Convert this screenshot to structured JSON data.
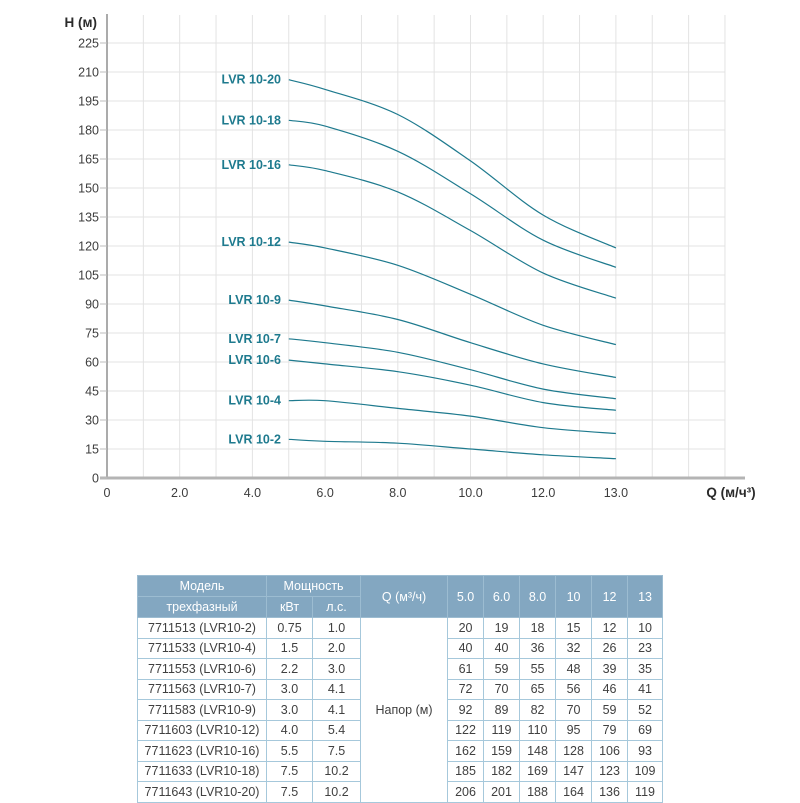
{
  "colors": {
    "curve": "#1e7a8e",
    "curve_label": "#1e7a8e",
    "grid": "#e3e3e3",
    "axis_y": "#8f8f8f",
    "axis_x": "#b4b4b4",
    "tick_text": "#3d3d3d",
    "axis_title": "#2b2b2b",
    "table_header_bg": "#83a7c1",
    "table_header_text": "#ffffff",
    "table_border": "#a6c8db",
    "table_text": "#404040"
  },
  "chart_data": {
    "type": "line",
    "title": "",
    "y_axis_title": "Н (м)",
    "x_axis_title": "Q (м/ч³)",
    "x_tick_labels": [
      "0",
      "2.0",
      "4.0",
      "6.0",
      "8.0",
      "10.0",
      "12.0",
      "13.0"
    ],
    "y_ticks": [
      0,
      15,
      30,
      45,
      60,
      75,
      90,
      105,
      120,
      135,
      150,
      165,
      180,
      195,
      210,
      225
    ],
    "ylim": [
      0,
      240
    ],
    "grid": "on",
    "legend_position": "inline-left-of-curves",
    "x": [
      5.0,
      6.0,
      8.0,
      10.0,
      12.0,
      13.0
    ],
    "series": [
      {
        "name": "LVR 10-2",
        "values": [
          20,
          19,
          18,
          15,
          12,
          10
        ]
      },
      {
        "name": "LVR 10-4",
        "values": [
          40,
          40,
          36,
          32,
          26,
          23
        ]
      },
      {
        "name": "LVR 10-6",
        "values": [
          61,
          59,
          55,
          48,
          39,
          35
        ]
      },
      {
        "name": "LVR 10-7",
        "values": [
          72,
          70,
          65,
          56,
          46,
          41
        ]
      },
      {
        "name": "LVR 10-9",
        "values": [
          92,
          89,
          82,
          70,
          59,
          52
        ]
      },
      {
        "name": "LVR 10-12",
        "values": [
          122,
          119,
          110,
          95,
          79,
          69
        ]
      },
      {
        "name": "LVR 10-16",
        "values": [
          162,
          159,
          148,
          128,
          106,
          93
        ]
      },
      {
        "name": "LVR 10-18",
        "values": [
          185,
          182,
          169,
          147,
          123,
          109
        ]
      },
      {
        "name": "LVR 10-20",
        "values": [
          206,
          201,
          188,
          164,
          136,
          119
        ]
      }
    ]
  },
  "table": {
    "header": {
      "model": "Модель",
      "model_sub": "трехфазный",
      "power": "Мощность",
      "kw": "кВт",
      "hp": "л.с.",
      "q": "Q (м³/ч)",
      "flow": [
        "5.0",
        "6.0",
        "8.0",
        "10",
        "12",
        "13"
      ],
      "napor": "Напор (м)"
    },
    "rows": [
      {
        "model": "7711513 (LVR10-2)",
        "kw": "0.75",
        "hp": "1.0",
        "values": [
          "20",
          "19",
          "18",
          "15",
          "12",
          "10"
        ]
      },
      {
        "model": "7711533 (LVR10-4)",
        "kw": "1.5",
        "hp": "2.0",
        "values": [
          "40",
          "40",
          "36",
          "32",
          "26",
          "23"
        ]
      },
      {
        "model": "7711553 (LVR10-6)",
        "kw": "2.2",
        "hp": "3.0",
        "values": [
          "61",
          "59",
          "55",
          "48",
          "39",
          "35"
        ]
      },
      {
        "model": "7711563 (LVR10-7)",
        "kw": "3.0",
        "hp": "4.1",
        "values": [
          "72",
          "70",
          "65",
          "56",
          "46",
          "41"
        ]
      },
      {
        "model": "7711583 (LVR10-9)",
        "kw": "3.0",
        "hp": "4.1",
        "values": [
          "92",
          "89",
          "82",
          "70",
          "59",
          "52"
        ]
      },
      {
        "model": "7711603 (LVR10-12)",
        "kw": "4.0",
        "hp": "5.4",
        "values": [
          "122",
          "119",
          "110",
          "95",
          "79",
          "69"
        ]
      },
      {
        "model": "7711623 (LVR10-16)",
        "kw": "5.5",
        "hp": "7.5",
        "values": [
          "162",
          "159",
          "148",
          "128",
          "106",
          "93"
        ]
      },
      {
        "model": "7711633 (LVR10-18)",
        "kw": "7.5",
        "hp": "10.2",
        "values": [
          "185",
          "182",
          "169",
          "147",
          "123",
          "109"
        ]
      },
      {
        "model": "7711643 (LVR10-20)",
        "kw": "7.5",
        "hp": "10.2",
        "values": [
          "206",
          "201",
          "188",
          "164",
          "136",
          "119"
        ]
      }
    ]
  }
}
